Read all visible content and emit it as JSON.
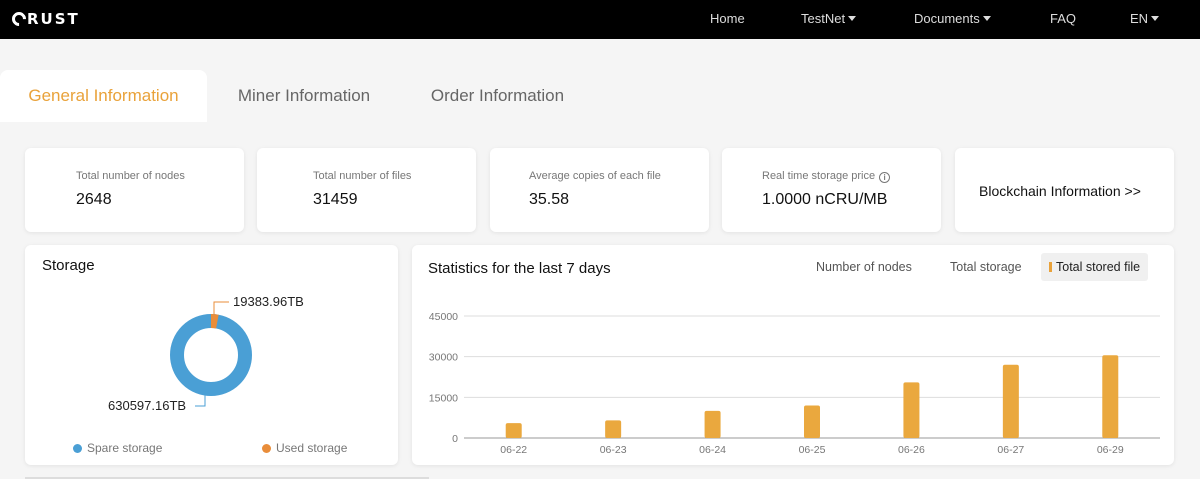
{
  "header": {
    "logo_text": "RUST",
    "nav": [
      {
        "label": "Home",
        "dropdown": false
      },
      {
        "label": "TestNet",
        "dropdown": true
      },
      {
        "label": "Documents",
        "dropdown": true
      },
      {
        "label": "FAQ",
        "dropdown": false
      },
      {
        "label": "EN",
        "dropdown": true
      }
    ]
  },
  "tabs": [
    {
      "label": "General Information",
      "active": true
    },
    {
      "label": "Miner Information",
      "active": false
    },
    {
      "label": "Order Information",
      "active": false
    }
  ],
  "stats": [
    {
      "label": "Total number of nodes",
      "value": "2648"
    },
    {
      "label": "Total number of files",
      "value": "31459"
    },
    {
      "label": "Average copies of each file",
      "value": "35.58"
    },
    {
      "label": "Real time storage price",
      "value": "1.0000 nCRU/MB",
      "info_icon": "info-icon"
    }
  ],
  "blockchain_link": "Blockchain Information >>",
  "storage": {
    "title": "Storage",
    "used_label": "19383.96TB",
    "spare_label": "630597.16TB",
    "used_value": 19383.96,
    "spare_value": 630597.16,
    "legend": [
      {
        "label": "Spare storage",
        "color": "#4a9fd5"
      },
      {
        "label": "Used storage",
        "color": "#e98d3a"
      }
    ]
  },
  "statistics": {
    "title": "Statistics for the last 7 days",
    "filters": [
      {
        "label": "Number of nodes",
        "active": false
      },
      {
        "label": "Total storage",
        "active": false
      },
      {
        "label": "Total stored file",
        "active": true
      }
    ]
  },
  "chart_data": {
    "type": "bar",
    "title": "Statistics for the last 7 days",
    "categories": [
      "06-22",
      "06-23",
      "06-24",
      "06-25",
      "06-26",
      "06-27",
      "06-29"
    ],
    "series": [
      {
        "name": "Total stored file",
        "values": [
          5500,
          6500,
          10000,
          12000,
          20500,
          27000,
          30500
        ]
      }
    ],
    "yticks": [
      0,
      15000,
      30000,
      45000
    ],
    "ytick_labels": [
      "0",
      "15000",
      "30000",
      "45000"
    ],
    "ylim": [
      0,
      45000
    ],
    "xlabel": "",
    "ylabel": "",
    "bar_color": "#eaa83e",
    "grid": true
  }
}
